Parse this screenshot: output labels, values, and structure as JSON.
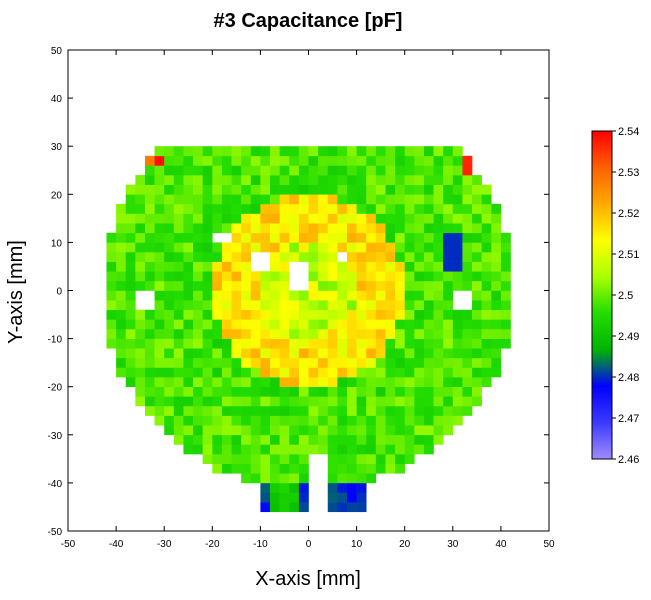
{
  "chart_data": {
    "type": "heatmap",
    "title": "#3 Capacitance [pF]",
    "xlabel": "X-axis [mm]",
    "ylabel": "Y-axis [mm]",
    "xlim": [
      -50,
      50
    ],
    "ylim": [
      -50,
      50
    ],
    "xticks": [
      "-50",
      "-40",
      "-30",
      "-20",
      "-10",
      "0",
      "10",
      "20",
      "30",
      "40",
      "50"
    ],
    "yticks": [
      "50",
      "40",
      "30",
      "20",
      "10",
      "0",
      "-10",
      "-20",
      "-30",
      "-40",
      "-50"
    ],
    "cell_size_mm": 2,
    "colorbar": {
      "min": 2.46,
      "max": 2.54,
      "ticks": [
        "2.54",
        "2.53",
        "2.52",
        "2.51",
        "2.5",
        "2.49",
        "2.48",
        "2.47",
        "2.46"
      ],
      "colormap": [
        "#a08cff",
        "#3a3aff",
        "#0000ff",
        "#00b400",
        "#22dd00",
        "#aaff00",
        "#ffff00",
        "#ffaa00",
        "#ff6000",
        "#ff0000"
      ]
    },
    "typical_values": {
      "center_ring": 2.516,
      "background_green": 2.498,
      "dark_green_band": 2.492,
      "blue_strip": 2.477
    }
  }
}
